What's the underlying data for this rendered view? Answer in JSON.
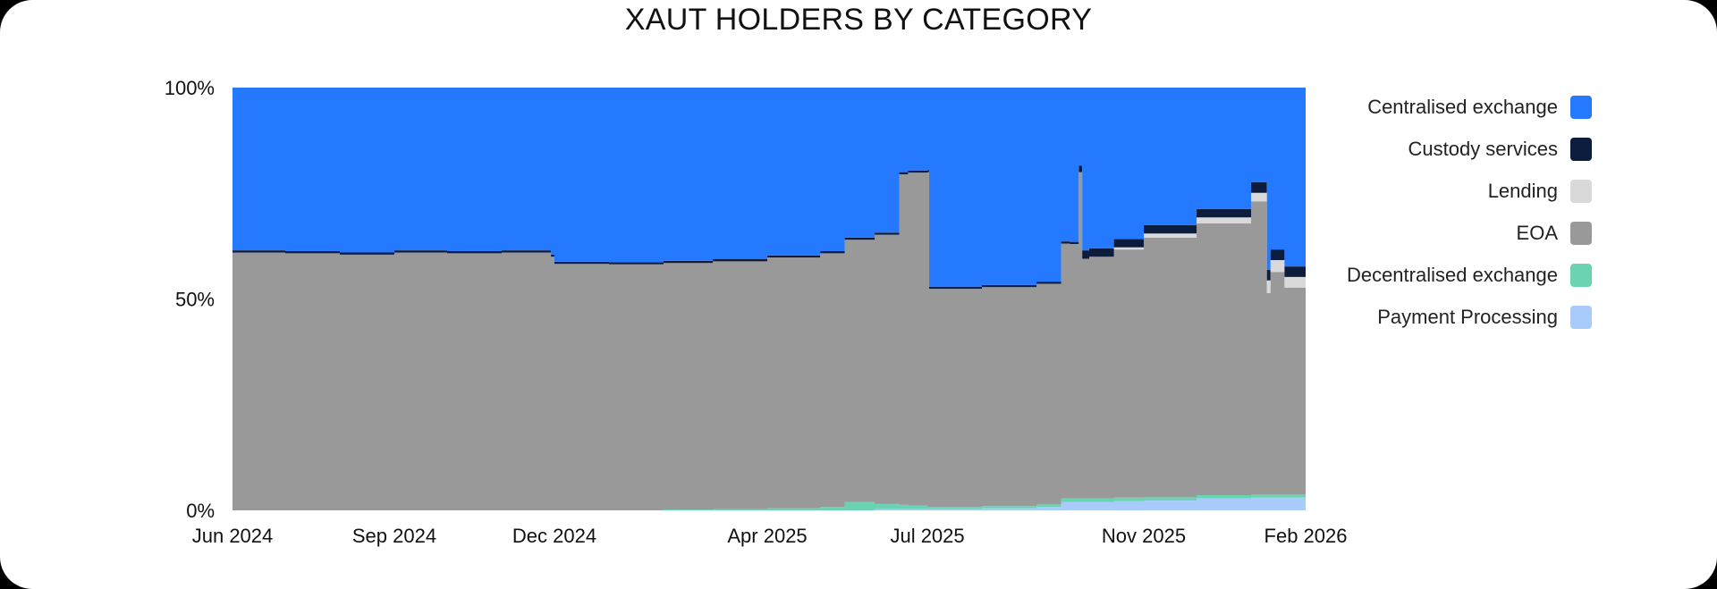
{
  "chart_data": {
    "type": "area",
    "stacked": "percent",
    "title": "XAUT HOLDERS BY CATEGORY",
    "xlabel": "",
    "ylabel": "",
    "ylim": [
      0,
      100
    ],
    "y_ticks": [
      "100%",
      "50%",
      "0%"
    ],
    "y_tick_values": [
      100,
      50,
      0
    ],
    "x_ticks": [
      "Jun 2024",
      "Sep 2024",
      "Dec 2024",
      "Apr 2025",
      "Jul 2025",
      "Nov 2025",
      "Feb 2026"
    ],
    "x_tick_dates": [
      "2024-06-01",
      "2024-09-01",
      "2024-12-01",
      "2025-04-01",
      "2025-07-01",
      "2025-11-01",
      "2026-02-01"
    ],
    "x": [
      "2024-06-01",
      "2024-07-01",
      "2024-08-01",
      "2024-09-01",
      "2024-10-01",
      "2024-11-01",
      "2024-11-29",
      "2024-12-01",
      "2025-01-01",
      "2025-02-01",
      "2025-03-01",
      "2025-04-01",
      "2025-05-01",
      "2025-05-15",
      "2025-06-01",
      "2025-06-15",
      "2025-06-20",
      "2025-07-01",
      "2025-07-02",
      "2025-08-01",
      "2025-09-01",
      "2025-09-15",
      "2025-09-20",
      "2025-09-25",
      "2025-09-27",
      "2025-10-01",
      "2025-10-15",
      "2025-11-01",
      "2025-12-01",
      "2026-01-01",
      "2026-01-10",
      "2026-01-12",
      "2026-01-20",
      "2026-02-01"
    ],
    "series": [
      {
        "name": "Payment Processing",
        "values": [
          0,
          0,
          0,
          0,
          0,
          0,
          0,
          0,
          0,
          0,
          0,
          0,
          0,
          0,
          0.3,
          0.3,
          0.3,
          0.3,
          0.3,
          0.5,
          0.8,
          2.0,
          2.0,
          2.0,
          2.0,
          2.0,
          2.2,
          2.3,
          2.8,
          3.0,
          3.0,
          3.0,
          3.0,
          3.0
        ]
      },
      {
        "name": "Decentralised exchange",
        "values": [
          0,
          0,
          0,
          0,
          0,
          0,
          0,
          0,
          0,
          0.2,
          0.3,
          0.5,
          0.8,
          2.0,
          1.2,
          1.0,
          0.8,
          0.5,
          0.5,
          0.5,
          0.6,
          0.8,
          0.8,
          0.8,
          0.8,
          0.8,
          0.8,
          0.8,
          0.8,
          0.8,
          0.8,
          0.8,
          0.8,
          0.8
        ]
      },
      {
        "name": "EOA",
        "values": [
          61,
          60.8,
          60.5,
          61,
          60.8,
          61,
          60,
          58.3,
          58.2,
          58.3,
          58.6,
          59.3,
          60,
          62,
          63.7,
          78.2,
          78.8,
          79.2,
          51.6,
          51.8,
          52.2,
          60.3,
          60.2,
          77.2,
          56.7,
          57.2,
          58.7,
          61.4,
          64.3,
          69.3,
          47.6,
          52.6,
          48.9,
          55.7
        ]
      },
      {
        "name": "Lending",
        "values": [
          0,
          0,
          0,
          0,
          0,
          0,
          0,
          0,
          0,
          0,
          0,
          0,
          0,
          0,
          0,
          0,
          0,
          0,
          0,
          0,
          0,
          0,
          0,
          0,
          0,
          0,
          0.5,
          1.0,
          1.4,
          2.0,
          3.0,
          2.8,
          2.5,
          2.5
        ]
      },
      {
        "name": "Custody services",
        "values": [
          0.5,
          0.5,
          0.5,
          0.5,
          0.5,
          0.5,
          0.5,
          0.5,
          0.5,
          0.5,
          0.5,
          0.5,
          0.5,
          0.5,
          0.5,
          0.5,
          0.5,
          0.5,
          0.5,
          0.5,
          0.5,
          0.5,
          0.5,
          1.5,
          2.0,
          2.0,
          2.0,
          2.0,
          2.0,
          2.5,
          2.5,
          2.5,
          2.5,
          2.5
        ]
      },
      {
        "name": "Centralised exchange",
        "values": [
          38.5,
          38.7,
          39,
          38.5,
          38.7,
          38.5,
          39.5,
          41.2,
          41.3,
          41,
          40.6,
          39.7,
          38.7,
          35.5,
          34.3,
          20,
          19.6,
          19.5,
          47.1,
          46.7,
          45.9,
          36.4,
          36.5,
          18.5,
          38.5,
          38,
          35.8,
          32.5,
          28.7,
          22.4,
          43.1,
          38.3,
          42.3,
          35.5
        ]
      }
    ],
    "legend_order": [
      "Centralised exchange",
      "Custody services",
      "Lending",
      "EOA",
      "Decentralised exchange",
      "Payment Processing"
    ],
    "legend_position": "right",
    "grid": false,
    "colors": {
      "Centralised exchange": "#2479FF",
      "Custody services": "#0C1C3D",
      "Lending": "#D9D9D9",
      "EOA": "#999999",
      "Decentralised exchange": "#6CD3B2",
      "Payment Processing": "#A9CBFC"
    }
  }
}
